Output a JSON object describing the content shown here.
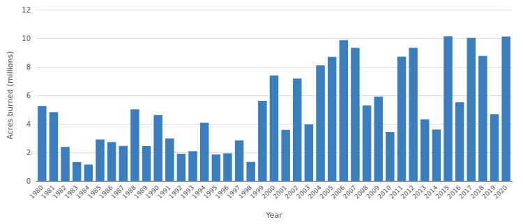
{
  "chart_data": {
    "type": "bar",
    "xlabel": "Year",
    "ylabel": "Acres burned (millions)",
    "categories": [
      "1980",
      "1981",
      "1982",
      "1983",
      "1984",
      "1985",
      "1986",
      "1987",
      "1988",
      "1989",
      "1990",
      "1991",
      "1992",
      "1993",
      "1994",
      "1995",
      "1996",
      "1997",
      "1998",
      "1999",
      "2000",
      "2001",
      "2002",
      "2003",
      "2004",
      "2005",
      "2006",
      "2007",
      "2008",
      "2009",
      "2010",
      "2011",
      "2012",
      "2013",
      "2014",
      "2015",
      "2016",
      "2017",
      "2018",
      "2019",
      "2020"
    ],
    "values": [
      5.26,
      4.82,
      2.38,
      1.32,
      1.15,
      2.9,
      2.72,
      2.45,
      5.01,
      2.44,
      4.62,
      2.97,
      1.9,
      2.08,
      4.07,
      1.85,
      1.93,
      2.84,
      1.33,
      5.61,
      7.39,
      3.57,
      7.18,
      3.96,
      8.1,
      8.69,
      9.87,
      9.33,
      5.29,
      5.92,
      3.42,
      8.71,
      9.33,
      4.32,
      3.6,
      10.13,
      5.51,
      10.03,
      8.77,
      4.67,
      10.12
    ],
    "color": "#3a7ebf",
    "ylim": [
      0,
      12
    ],
    "yticks": [
      0,
      2,
      4,
      6,
      8,
      10,
      12
    ],
    "grid": true
  }
}
